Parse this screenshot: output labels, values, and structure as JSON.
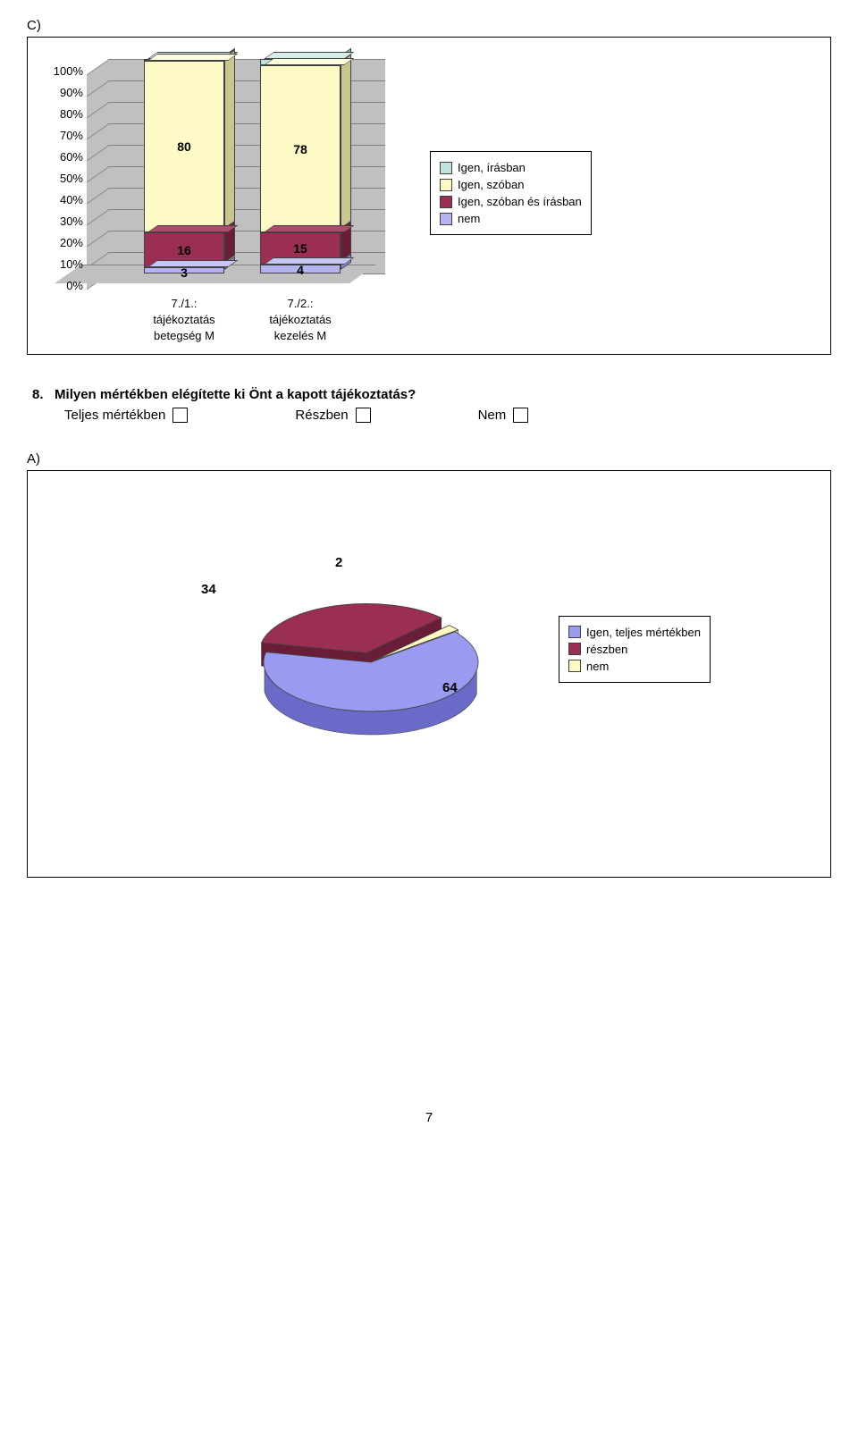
{
  "section_c_label": "C)",
  "bar_chart": {
    "type": "stacked-bar-3d",
    "y_ticks": [
      "0%",
      "10%",
      "20%",
      "30%",
      "40%",
      "50%",
      "60%",
      "70%",
      "80%",
      "90%",
      "100%"
    ],
    "plot_bg": "#c0c0c0",
    "grid_color": "#808080",
    "categories": [
      {
        "lines": [
          "7./1.:",
          "tájékoztatás",
          "betegség  M"
        ]
      },
      {
        "lines": [
          "7./2.:",
          "tájékoztatás",
          "kezelés M"
        ]
      }
    ],
    "series": [
      {
        "key": "nem",
        "label": "nem",
        "color_front": "#b4b4f0",
        "color_top": "#c6c6f5",
        "color_side": "#8a8ad0"
      },
      {
        "key": "szoban_es_irasban",
        "label": "Igen, szóban és írásban",
        "color_front": "#9a2f52",
        "color_top": "#b24a6b",
        "color_side": "#6a1d38"
      },
      {
        "key": "szoban",
        "label": "Igen, szóban",
        "color_front": "#fdfac6",
        "color_top": "#fefde0",
        "color_side": "#c9c690"
      },
      {
        "key": "irasban",
        "label": "Igen, írásban",
        "color_front": "#bfe2df",
        "color_top": "#d5edea",
        "color_side": "#8fbdb9"
      }
    ],
    "legend_order": [
      "irasban",
      "szoban",
      "szoban_es_irasban",
      "nem"
    ],
    "data": [
      {
        "nem": 3,
        "szoban_es_irasban": 16,
        "szoban": 80,
        "irasban": 1
      },
      {
        "nem": 4,
        "szoban_es_irasban": 15,
        "szoban": 78,
        "irasban": 3
      }
    ]
  },
  "question": {
    "number": "8.",
    "text_bold": "Milyen mértékben elégítette ki Önt a kapott tájékoztatás?",
    "options": [
      "Teljes mértékben",
      "Részben",
      "Nem"
    ]
  },
  "section_a_label": "A)",
  "pie_chart": {
    "type": "pie-3d",
    "background": "#ffffff",
    "slices": [
      {
        "key": "teljes",
        "label": "Igen, teljes mértékben",
        "value": 64,
        "color_top": "#9a9af0",
        "color_side": "#6a6ac8"
      },
      {
        "key": "reszben",
        "label": "részben",
        "value": 34,
        "color_top": "#9a2f52",
        "color_side": "#6a1d38"
      },
      {
        "key": "nem",
        "label": "nem",
        "value": 2,
        "color_top": "#fdfac6",
        "color_side": "#c9c690"
      }
    ],
    "labels": {
      "teljes": "64",
      "reszben": "34",
      "nem": "2"
    }
  },
  "page_number": "7"
}
